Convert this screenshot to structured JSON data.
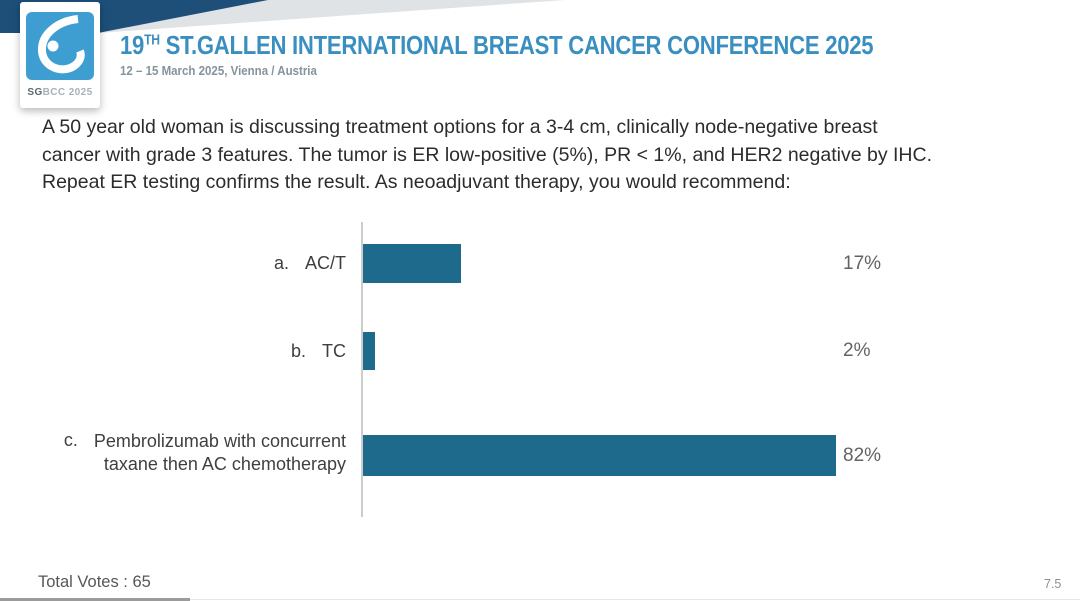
{
  "header": {
    "logo": {
      "acronym_bold": "SG",
      "acronym_rest": "BCC 2025",
      "square_color": "#3f9ed1"
    },
    "title_number": "19",
    "title_sup": "TH",
    "title_rest": " ST.GALLEN INTERNATIONAL BREAST CANCER CONFERENCE 2025",
    "subtitle": "12 – 15 March 2025, Vienna / Austria",
    "title_color": "#3a8fc0",
    "ribbon_color": "#1d4f79"
  },
  "question": {
    "lines": [
      "A 50 year old woman is discussing treatment options for a 3-4 cm, clinically node-negative breast",
      "cancer with grade 3 features. The tumor is ER low-positive (5%), PR < 1%, and HER2 negative by IHC.",
      "Repeat ER testing confirms the result. As neoadjuvant therapy, you would recommend:"
    ]
  },
  "chart_data": {
    "type": "bar",
    "orientation": "horizontal",
    "title": "",
    "xlabel": "",
    "ylabel": "",
    "xlim": [
      0,
      100
    ],
    "grid": false,
    "bar_color": "#1d6a8c",
    "categories": [
      "AC/T",
      "TC",
      "Pembrolizumab with concurrent taxane then AC chemotherapy"
    ],
    "values": [
      17,
      2,
      82
    ],
    "options": [
      {
        "letter": "a.",
        "label_line1": "AC/T",
        "label_line2": "",
        "value": 17,
        "value_label": "17%"
      },
      {
        "letter": "b.",
        "label_line1": "TC",
        "label_line2": "",
        "value": 2,
        "value_label": "2%"
      },
      {
        "letter": "c.",
        "label_line1": "Pembrolizumab with concurrent",
        "label_line2": "taxane then AC chemotherapy",
        "value": 82,
        "value_label": "82%"
      }
    ]
  },
  "footer": {
    "total_votes": "Total Votes : 65",
    "page": "7.5"
  }
}
